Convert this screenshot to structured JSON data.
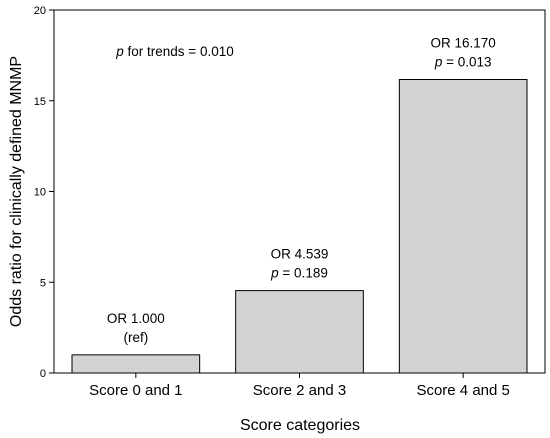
{
  "chart_data": {
    "type": "bar",
    "title": "",
    "xlabel": "Score categories",
    "ylabel": "Odds ratio for clinically defined MNMP",
    "categories": [
      "Score 0 and 1",
      "Score 2 and 3",
      "Score 4 and 5"
    ],
    "values": [
      1.0,
      4.539,
      16.17
    ],
    "ylim": [
      0,
      20
    ],
    "yticks": [
      0,
      5,
      10,
      15,
      20
    ],
    "grid": false,
    "bar_color": "#d3d3d3",
    "bar_labels": [
      {
        "line1": "OR 1.000",
        "line2_prefix": "",
        "line2": "(ref)"
      },
      {
        "line1": "OR 4.539",
        "line2_prefix": "p",
        "line2": " = 0.189"
      },
      {
        "line1": "OR 16.170",
        "line2_prefix": "p",
        "line2": " = 0.013"
      }
    ],
    "annotation": {
      "prefix": "p",
      "text": " for trends = 0.010"
    }
  }
}
